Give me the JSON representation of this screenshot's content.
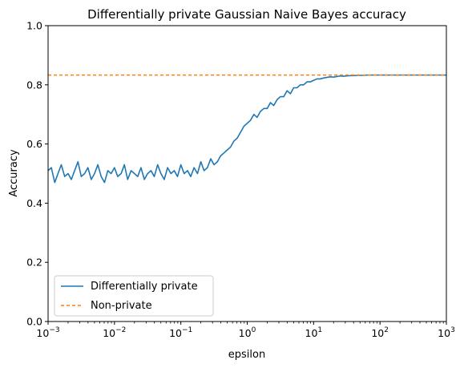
{
  "chart_data": {
    "type": "line",
    "title": "Differentially private Gaussian Naive Bayes accuracy",
    "xlabel": "epsilon",
    "ylabel": "Accuracy",
    "xscale": "log",
    "xlim": [
      0.001,
      1000
    ],
    "ylim": [
      0,
      1.0
    ],
    "x_ticks": [
      {
        "value": 0.001,
        "base": "10",
        "exp": "−3"
      },
      {
        "value": 0.01,
        "base": "10",
        "exp": "−2"
      },
      {
        "value": 0.1,
        "base": "10",
        "exp": "−1"
      },
      {
        "value": 1,
        "base": "10",
        "exp": "0"
      },
      {
        "value": 10,
        "base": "10",
        "exp": "1"
      },
      {
        "value": 100,
        "base": "10",
        "exp": "2"
      },
      {
        "value": 1000,
        "base": "10",
        "exp": "3"
      }
    ],
    "y_ticks": [
      {
        "value": 0.0,
        "label": "0.0"
      },
      {
        "value": 0.2,
        "label": "0.2"
      },
      {
        "value": 0.4,
        "label": "0.4"
      },
      {
        "value": 0.6,
        "label": "0.6"
      },
      {
        "value": 0.8,
        "label": "0.8"
      },
      {
        "value": 1.0,
        "label": "1.0"
      }
    ],
    "grid": false,
    "legend_position": "lower-left",
    "series": [
      {
        "name": "Differentially private",
        "color": "#1f77b4",
        "style": "solid",
        "x": [
          0.001,
          0.00112,
          0.00126,
          0.00141,
          0.00158,
          0.00178,
          0.002,
          0.00224,
          0.00251,
          0.00282,
          0.00316,
          0.00355,
          0.00398,
          0.00447,
          0.00501,
          0.00562,
          0.00631,
          0.00708,
          0.00794,
          0.00891,
          0.01,
          0.0112,
          0.0126,
          0.0141,
          0.0158,
          0.0178,
          0.02,
          0.0224,
          0.0251,
          0.0282,
          0.0316,
          0.0355,
          0.0398,
          0.0447,
          0.0501,
          0.0562,
          0.0631,
          0.0708,
          0.0794,
          0.0891,
          0.1,
          0.112,
          0.126,
          0.141,
          0.158,
          0.178,
          0.2,
          0.224,
          0.251,
          0.282,
          0.316,
          0.355,
          0.398,
          0.447,
          0.501,
          0.562,
          0.631,
          0.708,
          0.794,
          0.891,
          1.0,
          1.12,
          1.26,
          1.41,
          1.58,
          1.78,
          2.0,
          2.24,
          2.51,
          2.82,
          3.16,
          3.55,
          3.98,
          4.47,
          5.01,
          5.62,
          6.31,
          7.08,
          7.94,
          8.91,
          10,
          11.2,
          12.6,
          14.1,
          15.8,
          17.8,
          20,
          22.4,
          25.1,
          28.2,
          31.6,
          35.5,
          39.8,
          44.7,
          50.1,
          56.2,
          63.1,
          70.8,
          79.4,
          89.1,
          100,
          200,
          500,
          1000
        ],
        "values": [
          0.51,
          0.52,
          0.47,
          0.5,
          0.53,
          0.49,
          0.5,
          0.48,
          0.51,
          0.54,
          0.49,
          0.5,
          0.52,
          0.48,
          0.5,
          0.53,
          0.49,
          0.47,
          0.51,
          0.5,
          0.52,
          0.49,
          0.5,
          0.53,
          0.48,
          0.51,
          0.5,
          0.49,
          0.52,
          0.48,
          0.5,
          0.51,
          0.49,
          0.53,
          0.5,
          0.48,
          0.52,
          0.5,
          0.51,
          0.49,
          0.53,
          0.5,
          0.51,
          0.49,
          0.52,
          0.5,
          0.54,
          0.51,
          0.52,
          0.55,
          0.53,
          0.54,
          0.56,
          0.57,
          0.58,
          0.59,
          0.61,
          0.62,
          0.64,
          0.66,
          0.67,
          0.68,
          0.7,
          0.69,
          0.71,
          0.72,
          0.72,
          0.74,
          0.73,
          0.75,
          0.76,
          0.76,
          0.78,
          0.77,
          0.79,
          0.79,
          0.8,
          0.8,
          0.81,
          0.81,
          0.815,
          0.82,
          0.82,
          0.823,
          0.825,
          0.827,
          0.826,
          0.828,
          0.83,
          0.829,
          0.83,
          0.831,
          0.831,
          0.832,
          0.832,
          0.832,
          0.833,
          0.833,
          0.833,
          0.833,
          0.833,
          0.833,
          0.833,
          0.833
        ]
      },
      {
        "name": "Non-private",
        "color": "#ff7f0e",
        "style": "dashed",
        "x": [
          0.001,
          1000
        ],
        "values": [
          0.833,
          0.833
        ]
      }
    ]
  }
}
